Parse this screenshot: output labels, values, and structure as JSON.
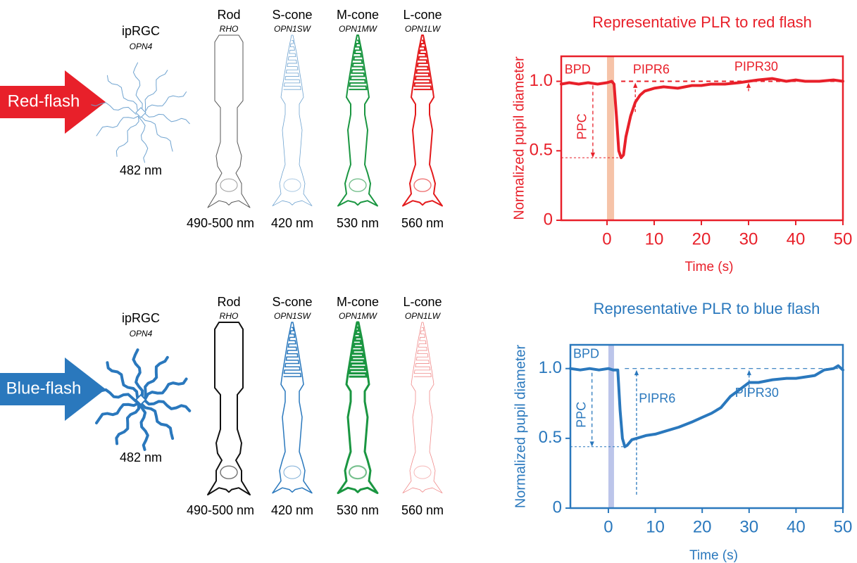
{
  "rows": [
    {
      "flash": "Red-flash",
      "color": "#e8202a",
      "cells": [
        {
          "name": "ipRGC",
          "gene": "OPN4",
          "wavelength": "482 nm",
          "color": "#6fa3d0"
        },
        {
          "name": "Rod",
          "gene": "RHO",
          "wavelength": "490-500 nm",
          "color": "#555555"
        },
        {
          "name": "S-cone",
          "gene": "OPN1SW",
          "wavelength": "420 nm",
          "color": "#6fa3d0"
        },
        {
          "name": "M-cone",
          "gene": "OPN1MW",
          "wavelength": "530 nm",
          "color": "#1a9641"
        },
        {
          "name": "L-cone",
          "gene": "OPN1LW",
          "wavelength": "560 nm",
          "color": "#e31a1c"
        }
      ]
    },
    {
      "flash": "Blue-flash",
      "color": "#2a78bd",
      "cells": [
        {
          "name": "ipRGC",
          "gene": "OPN4",
          "wavelength": "482 nm",
          "color": "#2a78bd"
        },
        {
          "name": "Rod",
          "gene": "RHO",
          "wavelength": "490-500 nm",
          "color": "#111111"
        },
        {
          "name": "S-cone",
          "gene": "OPN1SW",
          "wavelength": "420 nm",
          "color": "#2a78bd"
        },
        {
          "name": "M-cone",
          "gene": "OPN1MW",
          "wavelength": "530 nm",
          "color": "#1a9641"
        },
        {
          "name": "L-cone",
          "gene": "OPN1LW",
          "wavelength": "560 nm",
          "color": "#f08a8a"
        }
      ]
    }
  ],
  "chart_data": [
    {
      "type": "line",
      "title": "Representative PLR to red flash",
      "xlabel": "Time (s)",
      "ylabel": "Normalized pupil diameter",
      "color": "#e8202a",
      "x": [
        -9.7,
        -8,
        -6,
        -4,
        -2,
        0,
        1,
        1.5,
        2,
        2.5,
        3,
        3.5,
        4,
        5,
        6,
        7,
        8,
        10,
        12,
        15,
        18,
        20,
        22,
        25,
        28,
        30,
        32,
        35,
        38,
        40,
        42,
        45,
        48,
        50
      ],
      "values": [
        0.98,
        0.99,
        0.98,
        0.99,
        0.98,
        0.99,
        1.0,
        0.98,
        0.75,
        0.5,
        0.45,
        0.47,
        0.6,
        0.75,
        0.85,
        0.9,
        0.93,
        0.95,
        0.96,
        0.95,
        0.97,
        0.97,
        0.98,
        0.98,
        0.99,
        1.0,
        1.01,
        1.02,
        1.0,
        1.01,
        1.0,
        1.0,
        1.01,
        1.0
      ],
      "xlim": [
        -9.7,
        50
      ],
      "ylim": [
        0,
        1.18
      ],
      "xticks": [
        0,
        10,
        20,
        30,
        40,
        50
      ],
      "yticks": [
        0,
        0.5,
        {
          "value": 1,
          "label": "1.0"
        }
      ],
      "flash_window": [
        0,
        1.5
      ],
      "flash_color": "#f6c3a8",
      "annotations": [
        "BPD",
        "PPC",
        "PIPR6",
        "PIPR30"
      ]
    },
    {
      "type": "line",
      "title": "Representative PLR to blue flash",
      "xlabel": "Time (s)",
      "ylabel": "Normalized pupil diameter",
      "color": "#2a78bd",
      "x": [
        -8.1,
        -6,
        -4,
        -2,
        0,
        1,
        2,
        2.5,
        3,
        3.5,
        4,
        5,
        6,
        8,
        10,
        12,
        15,
        18,
        20,
        22,
        24,
        26,
        28,
        30,
        32,
        35,
        38,
        40,
        42,
        44,
        46,
        48,
        49,
        50
      ],
      "values": [
        1.0,
        0.99,
        1.0,
        0.99,
        1.0,
        0.99,
        0.99,
        0.7,
        0.5,
        0.44,
        0.45,
        0.49,
        0.5,
        0.52,
        0.53,
        0.55,
        0.58,
        0.62,
        0.65,
        0.68,
        0.72,
        0.8,
        0.85,
        0.9,
        0.9,
        0.92,
        0.93,
        0.93,
        0.94,
        0.95,
        0.99,
        1.0,
        1.02,
        0.99
      ],
      "xlim": [
        -8.1,
        50
      ],
      "ylim": [
        0,
        1.17
      ],
      "xticks": [
        0,
        10,
        20,
        30,
        40,
        50
      ],
      "yticks": [
        0,
        0.5,
        {
          "value": 1,
          "label": "1.0"
        }
      ],
      "flash_window": [
        0,
        1.2
      ],
      "flash_color": "#bcc5ea",
      "annotations": [
        "BPD",
        "PPC",
        "PIPR6",
        "PIPR30"
      ]
    }
  ]
}
